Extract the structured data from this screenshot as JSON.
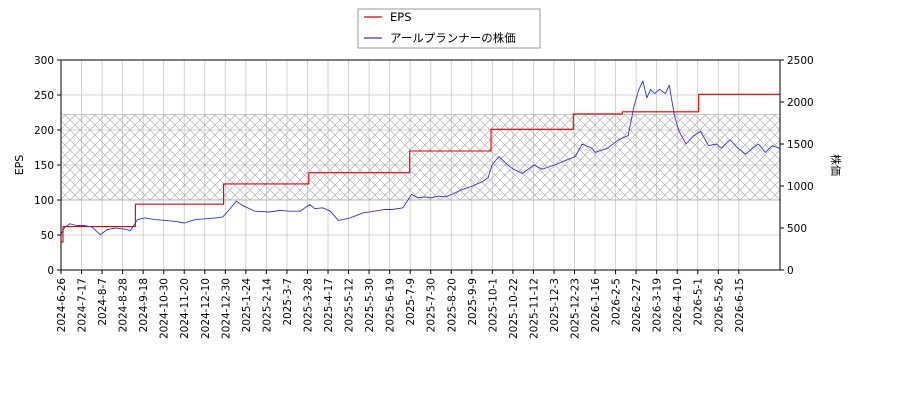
{
  "chart_data": {
    "type": "line",
    "title": "",
    "xlabel": "",
    "ylabel_left": "EPS",
    "ylabel_right": "株価",
    "ylim_left": [
      0,
      300
    ],
    "ylim_right": [
      0,
      2500
    ],
    "yticks_left": [
      0,
      50,
      100,
      150,
      200,
      250,
      300
    ],
    "yticks_right": [
      0,
      500,
      1000,
      1500,
      2000,
      2500
    ],
    "xlim": [
      "2024-06-26",
      "2026-06-30"
    ],
    "x_tick_labels": [
      "2024-6-26",
      "2024-7-17",
      "2024-8-7",
      "2024-8-28",
      "2024-9-18",
      "2024-10-30",
      "2024-11-20",
      "2024-12-10",
      "2024-12-30",
      "2025-1-24",
      "2025-2-14",
      "2025-3-7",
      "2025-3-28",
      "2025-4-17",
      "2025-5-12",
      "2025-5-30",
      "2025-6-19",
      "2025-7-9",
      "2025-7-30",
      "2025-8-20",
      "2025-9-9",
      "2025-10-1",
      "2025-10-22",
      "2025-11-12",
      "2025-12-3",
      "2025-12-23",
      "2026-1-16",
      "2026-2-5",
      "2026-2-27",
      "2026-3-19",
      "2026-4-10",
      "2026-5-1",
      "2026-5-26",
      "2026-6-15"
    ],
    "grid": true,
    "legend_position": "top-center",
    "band": {
      "axis": "left",
      "from": 100,
      "to": 222,
      "pattern": "cross-hatch"
    },
    "series": [
      {
        "name": "EPS",
        "axis": "left",
        "color": "#dd0000",
        "step": true,
        "points": [
          [
            "2024-06-26",
            40
          ],
          [
            "2024-06-28",
            62
          ],
          [
            "2024-09-10",
            94
          ],
          [
            "2024-12-09",
            123
          ],
          [
            "2025-03-06",
            139
          ],
          [
            "2025-06-17",
            170
          ],
          [
            "2025-09-08",
            201
          ],
          [
            "2025-12-01",
            223
          ],
          [
            "2026-01-20",
            226
          ],
          [
            "2026-04-08",
            251
          ],
          [
            "2026-06-30",
            251
          ]
        ]
      },
      {
        "name": "アールプランナーの株価",
        "axis": "right",
        "color": "#3333cc",
        "step": false,
        "points": [
          [
            "2024-06-26",
            430
          ],
          [
            "2024-06-30",
            510
          ],
          [
            "2024-07-05",
            550
          ],
          [
            "2024-07-12",
            530
          ],
          [
            "2024-07-20",
            530
          ],
          [
            "2024-07-28",
            510
          ],
          [
            "2024-08-05",
            420
          ],
          [
            "2024-08-12",
            480
          ],
          [
            "2024-08-20",
            500
          ],
          [
            "2024-08-28",
            490
          ],
          [
            "2024-09-05",
            470
          ],
          [
            "2024-09-12",
            600
          ],
          [
            "2024-09-20",
            620
          ],
          [
            "2024-09-30",
            600
          ],
          [
            "2024-10-10",
            590
          ],
          [
            "2024-10-20",
            580
          ],
          [
            "2024-10-30",
            560
          ],
          [
            "2024-11-10",
            600
          ],
          [
            "2024-11-20",
            610
          ],
          [
            "2024-12-01",
            620
          ],
          [
            "2024-12-08",
            630
          ],
          [
            "2024-12-15",
            720
          ],
          [
            "2024-12-22",
            820
          ],
          [
            "2024-12-28",
            770
          ],
          [
            "2025-01-10",
            700
          ],
          [
            "2025-01-24",
            690
          ],
          [
            "2025-02-05",
            710
          ],
          [
            "2025-02-14",
            700
          ],
          [
            "2025-02-25",
            700
          ],
          [
            "2025-03-07",
            780
          ],
          [
            "2025-03-12",
            730
          ],
          [
            "2025-03-20",
            740
          ],
          [
            "2025-03-28",
            700
          ],
          [
            "2025-04-05",
            590
          ],
          [
            "2025-04-10",
            600
          ],
          [
            "2025-04-17",
            620
          ],
          [
            "2025-04-30",
            680
          ],
          [
            "2025-05-12",
            700
          ],
          [
            "2025-05-22",
            720
          ],
          [
            "2025-05-30",
            720
          ],
          [
            "2025-06-10",
            740
          ],
          [
            "2025-06-19",
            900
          ],
          [
            "2025-06-25",
            860
          ],
          [
            "2025-07-02",
            870
          ],
          [
            "2025-07-09",
            860
          ],
          [
            "2025-07-16",
            880
          ],
          [
            "2025-07-23",
            870
          ],
          [
            "2025-07-30",
            900
          ],
          [
            "2025-08-08",
            950
          ],
          [
            "2025-08-20",
            1000
          ],
          [
            "2025-08-30",
            1050
          ],
          [
            "2025-09-05",
            1100
          ],
          [
            "2025-09-09",
            1250
          ],
          [
            "2025-09-16",
            1350
          ],
          [
            "2025-09-25",
            1250
          ],
          [
            "2025-10-01",
            1200
          ],
          [
            "2025-10-10",
            1150
          ],
          [
            "2025-10-22",
            1250
          ],
          [
            "2025-10-30",
            1200
          ],
          [
            "2025-11-12",
            1250
          ],
          [
            "2025-11-22",
            1300
          ],
          [
            "2025-12-03",
            1350
          ],
          [
            "2025-12-10",
            1500
          ],
          [
            "2025-12-20",
            1450
          ],
          [
            "2025-12-23",
            1400
          ],
          [
            "2026-01-05",
            1450
          ],
          [
            "2026-01-16",
            1550
          ],
          [
            "2026-01-26",
            1600
          ],
          [
            "2026-02-01",
            1950
          ],
          [
            "2026-02-06",
            2150
          ],
          [
            "2026-02-10",
            2250
          ],
          [
            "2026-02-14",
            2050
          ],
          [
            "2026-02-18",
            2150
          ],
          [
            "2026-02-22",
            2100
          ],
          [
            "2026-02-27",
            2150
          ],
          [
            "2026-03-05",
            2100
          ],
          [
            "2026-03-09",
            2200
          ],
          [
            "2026-03-14",
            1850
          ],
          [
            "2026-03-19",
            1650
          ],
          [
            "2026-03-26",
            1500
          ],
          [
            "2026-04-03",
            1600
          ],
          [
            "2026-04-10",
            1650
          ],
          [
            "2026-04-18",
            1480
          ],
          [
            "2026-04-26",
            1500
          ],
          [
            "2026-05-01",
            1450
          ],
          [
            "2026-05-10",
            1550
          ],
          [
            "2026-05-18",
            1450
          ],
          [
            "2026-05-26",
            1380
          ],
          [
            "2026-06-02",
            1450
          ],
          [
            "2026-06-08",
            1500
          ],
          [
            "2026-06-15",
            1400
          ],
          [
            "2026-06-22",
            1480
          ],
          [
            "2026-06-30",
            1450
          ]
        ]
      }
    ]
  }
}
